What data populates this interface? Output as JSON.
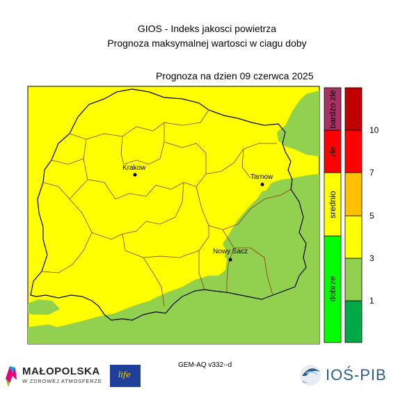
{
  "header": {
    "title_line1": "GIOS - Indeks jakosci powietrza",
    "title_line2": "Prognoza maksymalnej wartosci w ciagu doby",
    "forecast_date_label": "Prognoza na dzien  09 czerwca 2025"
  },
  "map": {
    "cities": [
      {
        "name": "Krakow"
      },
      {
        "name": "Tarnow"
      },
      {
        "name": "Nowy Sacz"
      }
    ],
    "colors": {
      "yellow": "#ffff00",
      "light_green": "#92d050",
      "border_black": "#000000",
      "border_brown": "#8b3a0f"
    }
  },
  "legend": {
    "categories": [
      {
        "label": "dobrze",
        "color": "#00ff00"
      },
      {
        "label": "srednio",
        "color": "#ffff00"
      },
      {
        "label": "złe",
        "color": "#ff0000"
      },
      {
        "label": "bardzo złe",
        "color": "#a83264"
      }
    ],
    "scale_colors": [
      "#00a846",
      "#92d050",
      "#ffff00",
      "#ffc000",
      "#ff0000",
      "#c00000"
    ],
    "tick_labels": [
      "1",
      "3",
      "5",
      "7",
      "10"
    ]
  },
  "footer": {
    "model_label": "GEM-AQ v332--d",
    "malopolska_name": "MAŁOPOLSKA",
    "malopolska_tagline": "W ZDROWEJ ATMOSFERZE",
    "eu_logo_text": "life",
    "institute_name": "IOŚ-PIB"
  }
}
